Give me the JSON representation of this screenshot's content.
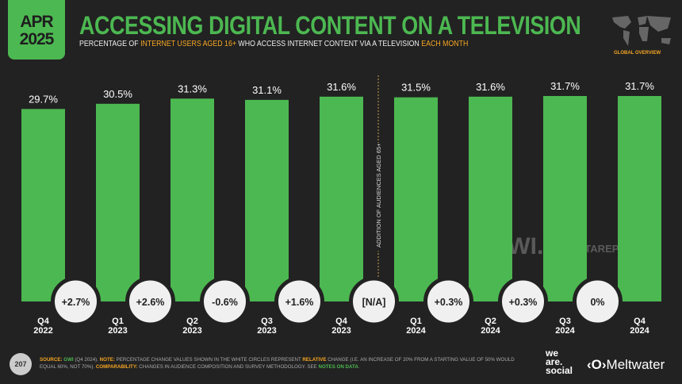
{
  "header": {
    "month": "APR",
    "year": "2025",
    "title": "ACCESSING DIGITAL CONTENT ON A TELEVISION",
    "subtitle_parts": [
      "PERCENTAGE OF ",
      "INTERNET USERS AGED 16+",
      " WHO ACCESS INTERNET CONTENT VIA A TELEVISION ",
      "EACH MONTH"
    ],
    "region": "GLOBAL OVERVIEW"
  },
  "colors": {
    "bar": "#4cb851",
    "accent": "#f5a623",
    "background": "#222222",
    "circle": "#f0f0f0"
  },
  "chart_data": {
    "type": "bar",
    "ylim": [
      0,
      35
    ],
    "grid": false,
    "categories": [
      [
        "Q4",
        "2022"
      ],
      [
        "Q1",
        "2023"
      ],
      [
        "Q2",
        "2023"
      ],
      [
        "Q3",
        "2023"
      ],
      [
        "Q4",
        "2023"
      ],
      [
        "Q1",
        "2024"
      ],
      [
        "Q2",
        "2024"
      ],
      [
        "Q3",
        "2024"
      ],
      [
        "Q4",
        "2024"
      ]
    ],
    "values": [
      29.7,
      30.5,
      31.3,
      31.1,
      31.6,
      31.5,
      31.6,
      31.7,
      31.7
    ],
    "data_labels": [
      "29.7%",
      "30.5%",
      "31.3%",
      "31.1%",
      "31.6%",
      "31.5%",
      "31.6%",
      "31.7%",
      "31.7%"
    ],
    "changes": [
      "+2.7%",
      "+2.6%",
      "-0.6%",
      "+1.6%",
      "[N/A]",
      "+0.3%",
      "+0.3%",
      "0%"
    ],
    "annotation": "ADDITION OF AUDIENCES AGED 65+"
  },
  "watermarks": [
    "GWI.",
    "DATAREPORTAL"
  ],
  "footer": {
    "page": "207",
    "parts": [
      [
        "SOURCE: ",
        "#f5a623"
      ],
      [
        "GWI",
        "#4cb851"
      ],
      [
        " (Q4 2024). ",
        ""
      ],
      [
        "NOTE: ",
        "#f5a623"
      ],
      [
        "PERCENTAGE CHANGE VALUES SHOWN IN THE WHITE CIRCLES REPRESENT ",
        ""
      ],
      [
        "RELATIVE",
        "#f5a623"
      ],
      [
        " CHANGE (I.E. AN INCREASE OF 20% FROM A STARTING VALUE OF 50% WOULD EQUAL 60%, NOT 70%). ",
        ""
      ],
      [
        "COMPARABILITY: ",
        "#f5a623"
      ],
      [
        "CHANGES IN AUDIENCE COMPOSITION AND SURVEY METHODOLOGY. SEE ",
        ""
      ],
      [
        "NOTES ON DATA",
        "#4cb851"
      ],
      [
        ".",
        ""
      ]
    ]
  },
  "logos": {
    "wearesocial": "we are. social",
    "meltwater": "Meltwater"
  }
}
